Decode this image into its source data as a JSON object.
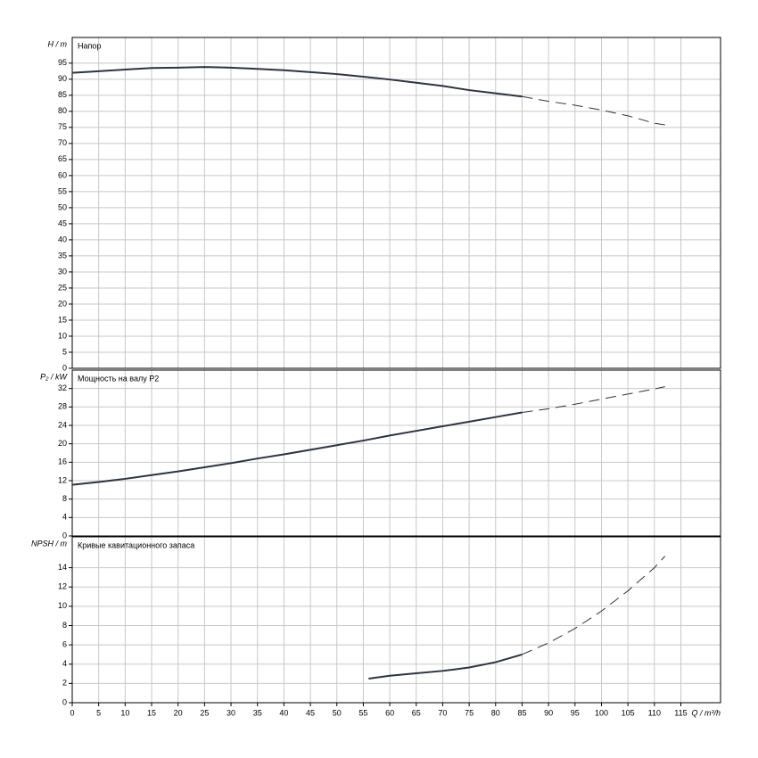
{
  "chart_data": [
    {
      "type": "line",
      "title": "Напор",
      "ylabel": "H / m",
      "xlim": [
        0,
        122.5
      ],
      "xticks": [
        0,
        5,
        10,
        15,
        20,
        25,
        30,
        35,
        40,
        45,
        50,
        55,
        60,
        65,
        70,
        75,
        80,
        85,
        90,
        95,
        100,
        105,
        110,
        115
      ],
      "ylim": [
        0,
        103
      ],
      "yticks": [
        0,
        5,
        10,
        15,
        20,
        25,
        30,
        35,
        40,
        45,
        50,
        55,
        60,
        65,
        70,
        75,
        80,
        85,
        90,
        95
      ],
      "grid": true,
      "series": [
        {
          "color": "#2b3440",
          "dash": false,
          "x": [
            0,
            5,
            10,
            15,
            20,
            25,
            30,
            35,
            40,
            45,
            50,
            55,
            60,
            65,
            70,
            75,
            80,
            85
          ],
          "values": [
            92,
            92.5,
            93,
            93.5,
            93.6,
            93.8,
            93.6,
            93.2,
            92.8,
            92.2,
            91.6,
            90.8,
            89.9,
            88.9,
            87.9,
            86.6,
            85.6,
            84.6
          ]
        },
        {
          "color": "#2b3440",
          "dash": true,
          "x": [
            85,
            90,
            95,
            100,
            105,
            110,
            112
          ],
          "values": [
            84.6,
            83.1,
            81.9,
            80.4,
            78.6,
            76.3,
            75.8
          ]
        }
      ]
    },
    {
      "type": "line",
      "title": "Мощность на валу P2",
      "ylabel": "P₂ / kW",
      "xlim": [
        0,
        122.5
      ],
      "xticks": [
        0,
        5,
        10,
        15,
        20,
        25,
        30,
        35,
        40,
        45,
        50,
        55,
        60,
        65,
        70,
        75,
        80,
        85,
        90,
        95,
        100,
        105,
        110,
        115
      ],
      "ylim": [
        0,
        36
      ],
      "yticks": [
        0,
        4,
        8,
        12,
        16,
        20,
        24,
        28,
        32
      ],
      "grid": true,
      "series": [
        {
          "color": "#2b3440",
          "dash": false,
          "x": [
            0,
            5,
            10,
            15,
            20,
            25,
            30,
            35,
            40,
            45,
            50,
            55,
            60,
            65,
            70,
            75,
            80,
            85
          ],
          "values": [
            11.1,
            11.7,
            12.4,
            13.2,
            14.0,
            14.9,
            15.8,
            16.8,
            17.7,
            18.7,
            19.7,
            20.7,
            21.8,
            22.8,
            23.8,
            24.8,
            25.8,
            26.8
          ]
        },
        {
          "color": "#2b3440",
          "dash": true,
          "x": [
            85,
            90,
            95,
            100,
            105,
            110,
            112
          ],
          "values": [
            26.8,
            27.6,
            28.6,
            29.7,
            30.8,
            31.9,
            32.4
          ]
        }
      ]
    },
    {
      "type": "line",
      "title": "Кривые кавитационного запаса",
      "ylabel": "NPSH / m",
      "xlabel": "Q / m³/h",
      "xlim": [
        0,
        122.5
      ],
      "xticks": [
        0,
        5,
        10,
        15,
        20,
        25,
        30,
        35,
        40,
        45,
        50,
        55,
        60,
        65,
        70,
        75,
        80,
        85,
        90,
        95,
        100,
        105,
        110,
        115
      ],
      "ylim": [
        0,
        17.2
      ],
      "yticks": [
        0,
        2,
        4,
        6,
        8,
        10,
        12,
        14
      ],
      "grid": true,
      "series": [
        {
          "color": "#2b3440",
          "dash": false,
          "x": [
            56,
            60,
            65,
            70,
            75,
            80,
            85
          ],
          "values": [
            2.5,
            2.8,
            3.05,
            3.3,
            3.65,
            4.2,
            5.0
          ]
        },
        {
          "color": "#2b3440",
          "dash": true,
          "x": [
            85,
            90,
            95,
            100,
            105,
            110,
            112
          ],
          "values": [
            5.0,
            6.2,
            7.7,
            9.5,
            11.6,
            14.0,
            15.2
          ]
        }
      ]
    }
  ]
}
